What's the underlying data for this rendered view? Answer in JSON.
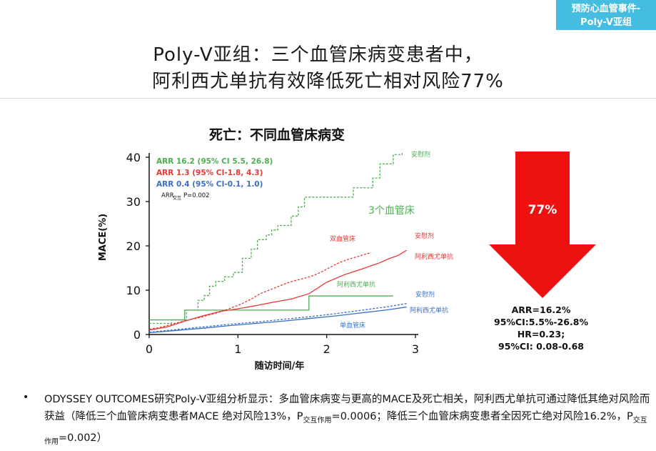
{
  "tag": {
    "line1": "预防心血管事件-",
    "line2": "Poly-V亚组"
  },
  "title": {
    "line1": "Poly-V亚组：三个血管床病变患者中，",
    "line2": "阿利西尤单抗有效降低死亡相对风险77%"
  },
  "arrow": {
    "percent": "77%",
    "color": "#ee1111"
  },
  "stats": [
    "ARR=16.2%",
    "95%CI:5.5%-26.8%",
    "HR=0.23;",
    "95%CI: 0.08-0.68"
  ],
  "note": {
    "bullet": "•",
    "text1": "ODYSSEY OUTCOMES研究Poly-V亚组分析显示：多血管床病变与更高的MACE及死亡相关，阿利西尤单抗可通过降低其绝对风险而获益（降低三个血管床病变患者MACE 绝对风险13%，",
    "p1": "P",
    "p1_sub": "交互作用",
    "text2": "=0.0006；降低三个血管床病变患者全因死亡绝对风险16.2%，",
    "p2": "P",
    "p2_sub": "交互作用",
    "text3": "=0.002）"
  },
  "chart_data": {
    "type": "line",
    "title": "死亡：不同血管床病变",
    "xlabel": "随访时间/年",
    "ylabel": "MACE(%)",
    "xlim": [
      0,
      3
    ],
    "ylim": [
      0,
      40
    ],
    "xticks": [
      0,
      1,
      2,
      3
    ],
    "yticks": [
      0,
      10,
      20,
      30,
      40
    ],
    "legend": [
      {
        "text": "ARR 16.2 (95% CI 5.5, 26.8)",
        "color": "#4caf50"
      },
      {
        "text": "ARR 1.3 (95% CI-1.8, 4.3)",
        "color": "#e53935"
      },
      {
        "text": "ARR 0.4 (95% CI-0.1, 1.0)",
        "color": "#3a6fc4"
      },
      {
        "text": "ARR",
        "sub": "交互",
        "text2": " P=0.002",
        "color": "#111111"
      }
    ],
    "annotations": [
      {
        "text": "安慰剂",
        "color": "#4caf50"
      },
      {
        "text": "3个血管床",
        "color": "#4caf50"
      },
      {
        "text": "双血管床",
        "color": "#e53935"
      },
      {
        "text": "安慰剂",
        "color": "#e53935"
      },
      {
        "text": "阿利西尤单抗",
        "color": "#e53935"
      },
      {
        "text": "阿利西尤单抗",
        "color": "#4caf50"
      },
      {
        "text": "安慰剂",
        "color": "#3a6fc4"
      },
      {
        "text": "阿利西尤单抗",
        "color": "#3a6fc4"
      },
      {
        "text": "单血管床",
        "color": "#3a6fc4"
      }
    ],
    "series": [
      {
        "color": "#4caf50",
        "dashed": true,
        "step": true,
        "x": [
          0,
          0.25,
          0.42,
          0.5,
          0.55,
          0.62,
          0.68,
          0.75,
          0.85,
          0.95,
          1.05,
          1.15,
          1.22,
          1.32,
          1.38,
          1.45,
          1.6,
          1.68,
          1.75,
          2.08,
          2.3,
          2.52,
          2.6,
          2.75,
          2.85
        ],
        "y": [
          2.5,
          3.3,
          5.5,
          5.5,
          7.7,
          8.8,
          10.9,
          12.0,
          13.0,
          14.0,
          17.2,
          19.3,
          21.4,
          22.5,
          23.6,
          24.6,
          26.7,
          28.8,
          31.0,
          31.0,
          33.1,
          35.3,
          38.5,
          40.6,
          41.0
        ]
      },
      {
        "color": "#4caf50",
        "dashed": false,
        "step": true,
        "x": [
          0,
          0.4,
          1.8,
          2.75
        ],
        "y": [
          3.3,
          5.5,
          8.7,
          8.7
        ]
      },
      {
        "color": "#e53935",
        "dashed": true,
        "step": false,
        "x": [
          0,
          0.1,
          0.2,
          0.3,
          0.45,
          0.6,
          0.75,
          0.9,
          1.05,
          1.15,
          1.25,
          1.35,
          1.45,
          1.55,
          1.65,
          1.75,
          1.85,
          1.95,
          2.05,
          2.15,
          2.25,
          2.35,
          2.45,
          2.5
        ],
        "y": [
          1.2,
          1.5,
          2.0,
          2.6,
          3.3,
          4.0,
          4.8,
          5.8,
          7.0,
          8.0,
          9.2,
          10.0,
          10.8,
          11.6,
          12.2,
          12.7,
          13.3,
          14.2,
          15.3,
          16.3,
          17.0,
          17.6,
          18.2,
          18.5
        ]
      },
      {
        "color": "#e53935",
        "dashed": false,
        "step": false,
        "x": [
          0,
          0.2,
          0.4,
          0.6,
          0.8,
          1.0,
          1.2,
          1.4,
          1.6,
          1.8,
          1.9,
          2.0,
          2.2,
          2.4,
          2.5,
          2.6,
          2.7,
          2.8,
          2.9
        ],
        "y": [
          1.0,
          1.7,
          3.0,
          4.2,
          5.2,
          5.8,
          6.5,
          7.3,
          8.0,
          9.2,
          10.5,
          11.8,
          13.5,
          14.8,
          15.5,
          16.2,
          17.1,
          17.8,
          19.0
        ]
      },
      {
        "color": "#3a6fc4",
        "dashed": true,
        "step": false,
        "x": [
          0,
          0.3,
          0.6,
          0.9,
          1.2,
          1.5,
          1.8,
          2.1,
          2.4,
          2.7,
          2.9
        ],
        "y": [
          0.5,
          1.1,
          1.7,
          2.3,
          2.8,
          3.4,
          4.0,
          4.7,
          5.5,
          6.3,
          7.0
        ]
      },
      {
        "color": "#3a6fc4",
        "dashed": false,
        "step": false,
        "x": [
          0,
          0.3,
          0.6,
          0.9,
          1.2,
          1.5,
          1.8,
          2.1,
          2.4,
          2.7,
          2.9
        ],
        "y": [
          0.4,
          0.9,
          1.4,
          2.0,
          2.5,
          3.0,
          3.6,
          4.2,
          4.9,
          5.6,
          6.2
        ]
      }
    ]
  }
}
